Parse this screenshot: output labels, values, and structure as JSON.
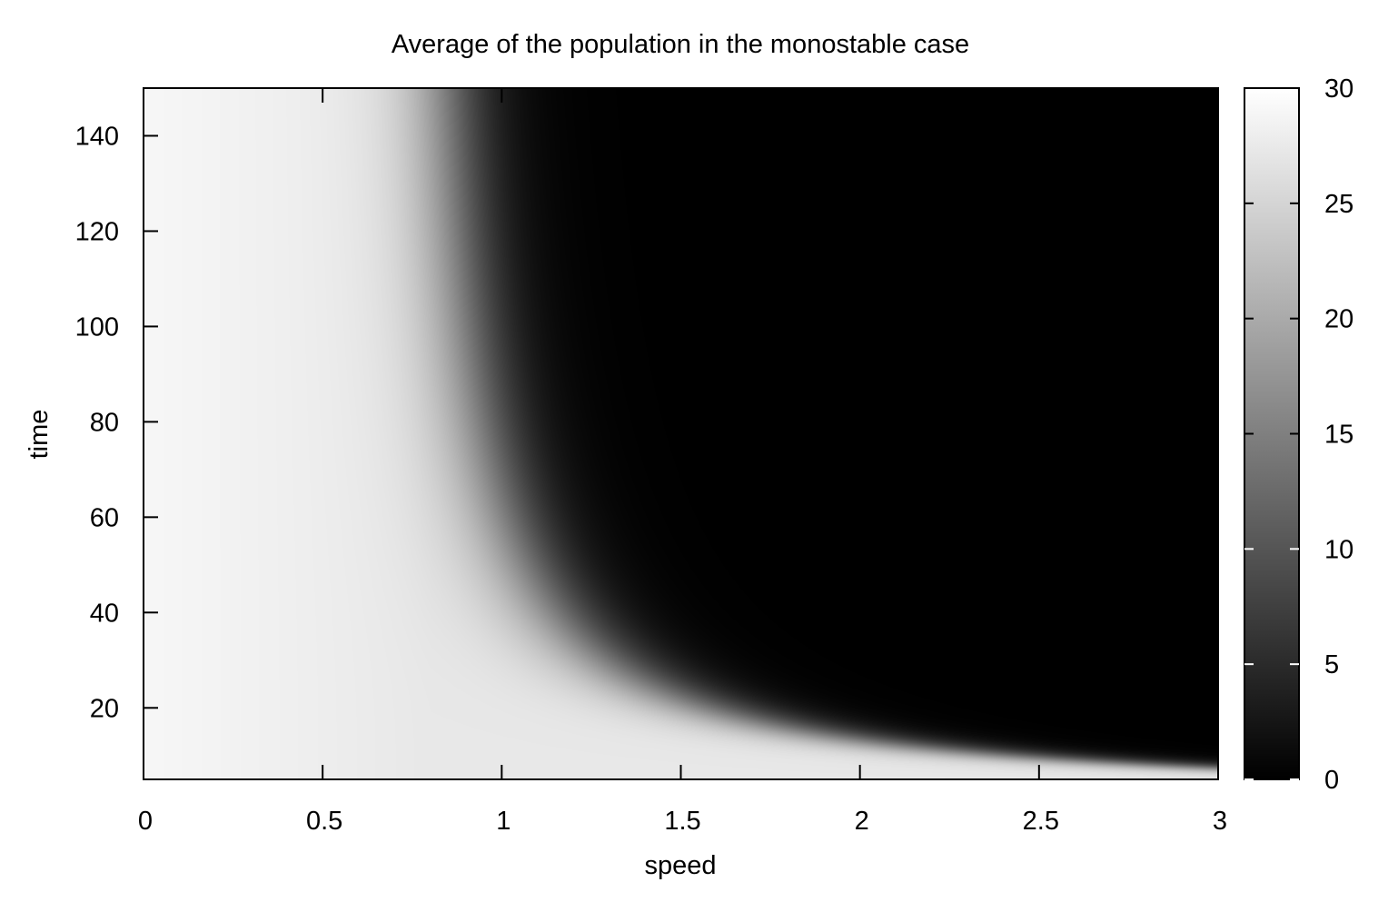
{
  "chart_data": {
    "type": "heatmap",
    "title": "Average of the population in the monostable case",
    "xlabel": "speed",
    "ylabel": "time",
    "xlim": [
      0,
      3
    ],
    "ylim": [
      5,
      150
    ],
    "xticks": [
      "0",
      "0.5",
      "1",
      "1.5",
      "2",
      "2.5",
      "3"
    ],
    "xtick_values": [
      0,
      0.5,
      1,
      1.5,
      2,
      2.5,
      3
    ],
    "yticks": [
      "20",
      "40",
      "60",
      "80",
      "100",
      "120",
      "140"
    ],
    "ytick_values": [
      20,
      40,
      60,
      80,
      100,
      120,
      140
    ],
    "colorbar": {
      "range": [
        0,
        30
      ],
      "ticks": [
        "0",
        "5",
        "10",
        "15",
        "20",
        "25",
        "30"
      ],
      "tick_values": [
        0,
        5,
        10,
        15,
        20,
        25,
        30
      ],
      "low_color": "#000000",
      "high_color": "#ffffff"
    },
    "grid": false,
    "legend": "none",
    "colormap": "grayscale",
    "description_values": {
      "plateau_value": 29,
      "extinct_value": 0
    }
  }
}
